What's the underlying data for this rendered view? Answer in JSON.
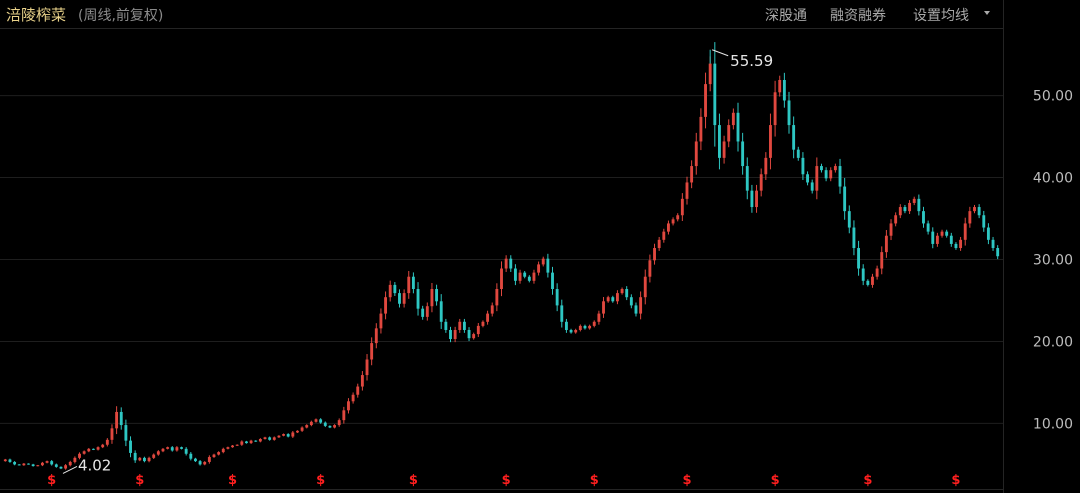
{
  "header": {
    "title": "涪陵榨菜",
    "subtitle": "(周线,前复权)",
    "menu": [
      "深股通",
      "融资融券",
      "设置均线"
    ]
  },
  "colors": {
    "up": "#e0483f",
    "down": "#2ec7c3",
    "title": "#e9d28a",
    "dividend_marker": "#ff1f1f"
  },
  "chart_data": {
    "type": "candlestick",
    "title": "涪陵榨菜",
    "period": "周线,前复权",
    "ylim": [
      2,
      58
    ],
    "yticks": [
      10,
      20,
      30,
      40,
      50
    ],
    "ytick_labels": [
      "10.00",
      "20.00",
      "30.00",
      "40.00",
      "50.00"
    ],
    "grid": true,
    "annotations": [
      {
        "label": "55.59",
        "value": 55.59,
        "type": "max"
      },
      {
        "label": "4.02",
        "value": 4.02,
        "type": "min"
      }
    ],
    "dividend_marker_label": "$",
    "dividend_marker_count": 11,
    "series": [
      {
        "name": "close",
        "values": [
          5.6,
          5.3,
          5.0,
          4.9,
          5.1,
          5.0,
          4.8,
          4.9,
          5.2,
          5.4,
          5.0,
          4.7,
          4.5,
          4.9,
          5.3,
          5.8,
          6.3,
          6.6,
          6.9,
          6.8,
          7.1,
          7.4,
          8.0,
          9.4,
          11.4,
          9.8,
          7.9,
          6.4,
          5.5,
          5.8,
          5.4,
          5.8,
          6.2,
          6.6,
          6.9,
          7.1,
          6.7,
          7.1,
          6.9,
          6.3,
          5.7,
          5.4,
          5.0,
          5.3,
          5.9,
          6.2,
          6.5,
          6.9,
          7.1,
          7.3,
          7.4,
          7.8,
          7.6,
          7.9,
          7.8,
          8.1,
          8.3,
          8.0,
          8.3,
          8.5,
          8.7,
          8.4,
          8.9,
          9.1,
          9.5,
          9.8,
          10.2,
          10.5,
          10.1,
          9.7,
          9.5,
          9.8,
          10.4,
          11.6,
          12.7,
          13.5,
          14.5,
          15.9,
          17.8,
          19.8,
          21.6,
          23.4,
          25.4,
          26.9,
          25.9,
          24.6,
          25.9,
          27.9,
          26.4,
          24.0,
          23.0,
          24.3,
          26.4,
          24.9,
          22.4,
          21.4,
          20.3,
          21.4,
          22.4,
          21.4,
          20.4,
          20.9,
          21.9,
          22.4,
          23.4,
          24.4,
          26.4,
          28.9,
          30.1,
          28.9,
          27.4,
          28.4,
          27.9,
          27.4,
          28.4,
          29.4,
          30.1,
          28.4,
          26.4,
          24.4,
          22.4,
          21.4,
          21.1,
          21.4,
          21.9,
          21.6,
          21.9,
          22.4,
          23.4,
          24.9,
          25.4,
          24.9,
          25.9,
          26.4,
          25.4,
          24.4,
          23.4,
          25.4,
          27.9,
          29.9,
          31.4,
          32.4,
          33.4,
          34.4,
          34.9,
          35.4,
          37.4,
          39.4,
          41.4,
          44.4,
          47.4,
          51.4,
          53.9,
          46.4,
          42.4,
          44.4,
          46.4,
          47.9,
          44.4,
          41.4,
          38.4,
          36.4,
          38.4,
          40.4,
          42.4,
          46.4,
          50.4,
          51.9,
          49.4,
          46.4,
          43.4,
          42.4,
          40.4,
          39.4,
          38.4,
          41.4,
          40.9,
          39.9,
          40.9,
          41.4,
          38.9,
          35.9,
          33.9,
          31.4,
          28.9,
          27.4,
          26.9,
          27.9,
          28.9,
          30.9,
          32.9,
          34.4,
          35.4,
          36.4,
          35.9,
          36.9,
          37.4,
          35.9,
          34.4,
          33.4,
          31.9,
          32.9,
          33.4,
          32.9,
          31.9,
          31.4,
          32.4,
          34.4,
          35.9,
          36.4,
          35.4,
          33.9,
          32.4,
          31.4,
          30.4
        ]
      }
    ]
  }
}
